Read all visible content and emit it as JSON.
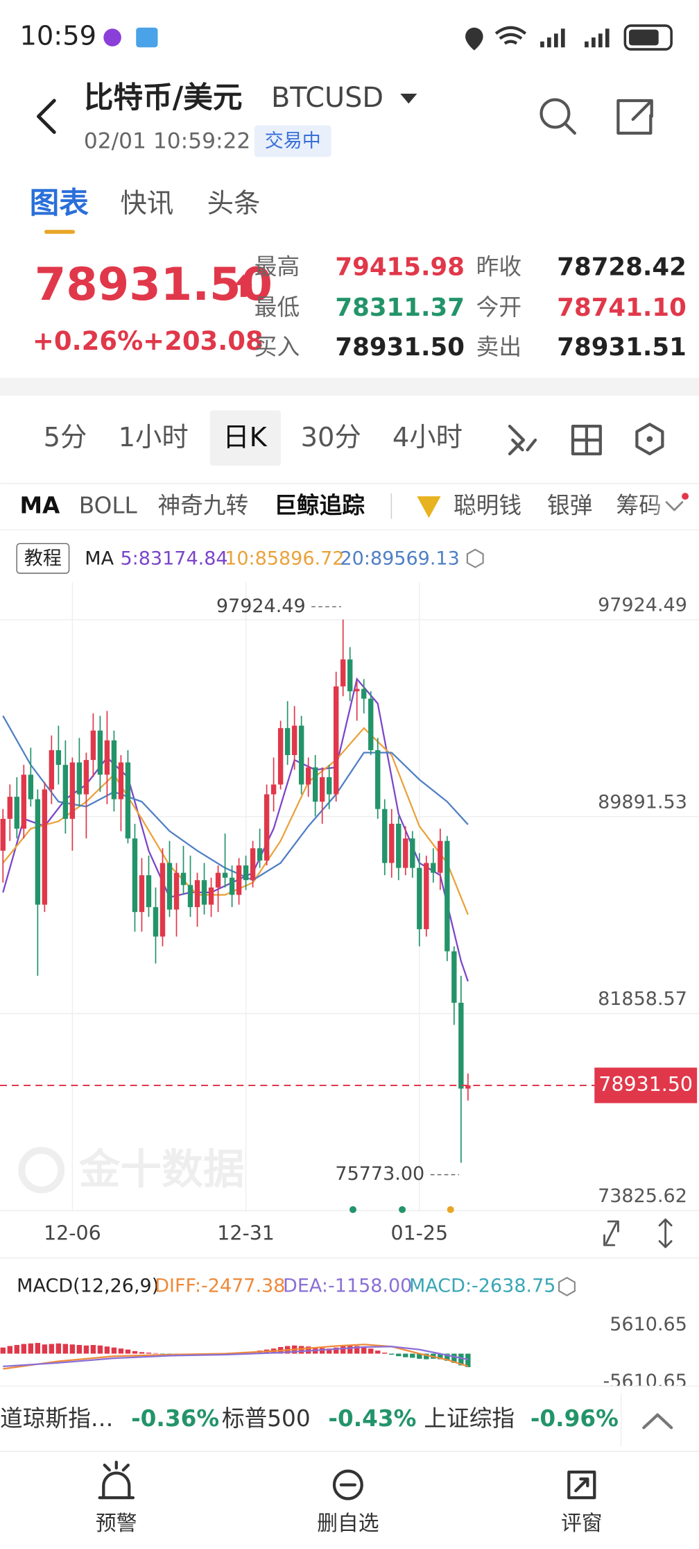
{
  "status_bar": {
    "time": "10:59"
  },
  "header": {
    "title": "比特币/美元",
    "symbol": "BTCUSD",
    "datetime": "02/01 10:59:22",
    "status": "交易中"
  },
  "tabs": [
    "图表",
    "快讯",
    "头条"
  ],
  "quote": {
    "price": "78931.50",
    "change_pct": "+0.26%",
    "change": "+203.08",
    "fields": [
      {
        "label": "最高",
        "value": "79415.98"
      },
      {
        "label": "昨收",
        "value": "78728.42"
      },
      {
        "label": "最低",
        "value": "78311.37"
      },
      {
        "label": "今开",
        "value": "78741.10"
      },
      {
        "label": "买入",
        "value": "78931.50"
      },
      {
        "label": "卖出",
        "value": "78931.51"
      }
    ]
  },
  "periods": [
    "5分",
    "1小时",
    "日K",
    "30分",
    "4小时"
  ],
  "indicators": [
    "MA",
    "BOLL",
    "神奇九转",
    "巨鲸追踪",
    "聪明钱",
    "银弹",
    "筹码"
  ],
  "kline": {
    "type": "candlestick",
    "tutorial": "教程",
    "ma_label": "MA",
    "up_color": "#e0384a",
    "down_color": "#23946a",
    "ylim": [
      73825.62,
      97924.49
    ],
    "yticks": [
      97924.49,
      89891.53,
      81858.57,
      73825.62
    ],
    "xticks": [
      {
        "value": 10,
        "label": "12-06"
      },
      {
        "value": 35,
        "label": "12-31"
      },
      {
        "value": 60,
        "label": "01-25"
      }
    ],
    "high": 97924.49,
    "low": {
      "value": 75773,
      "label": "75773.00"
    },
    "last": {
      "value": 78931.5,
      "label": "78931.50"
    },
    "watermark": "金十数据",
    "candles": [
      [
        88500,
        90200,
        87200,
        89800
      ],
      [
        89800,
        91200,
        88900,
        90700
      ],
      [
        90700,
        91500,
        89000,
        89400
      ],
      [
        89400,
        92000,
        89000,
        91600
      ],
      [
        91600,
        92700,
        90300,
        90600
      ],
      [
        90600,
        91000,
        83400,
        86300
      ],
      [
        86300,
        91300,
        86000,
        91000
      ],
      [
        91000,
        93200,
        90400,
        92600
      ],
      [
        92600,
        93600,
        91200,
        92000
      ],
      [
        92000,
        93000,
        89200,
        89800
      ],
      [
        89800,
        92300,
        88500,
        92100
      ],
      [
        92100,
        93100,
        90300,
        90800
      ],
      [
        90800,
        92500,
        89000,
        92200
      ],
      [
        92200,
        94100,
        91500,
        93400
      ],
      [
        93400,
        94000,
        90900,
        91600
      ],
      [
        91600,
        94200,
        90400,
        93000
      ],
      [
        93000,
        93400,
        90100,
        90600
      ],
      [
        90600,
        92400,
        89300,
        92100
      ],
      [
        92100,
        92600,
        88800,
        89000
      ],
      [
        89000,
        89600,
        85200,
        86000
      ],
      [
        86000,
        88200,
        85200,
        87500
      ],
      [
        87500,
        88300,
        85800,
        86200
      ],
      [
        86200,
        87000,
        83900,
        85000
      ],
      [
        85000,
        88600,
        84600,
        88000
      ],
      [
        88000,
        88900,
        85800,
        86100
      ],
      [
        86100,
        88000,
        85000,
        87600
      ],
      [
        87600,
        88700,
        86700,
        87100
      ],
      [
        87100,
        88300,
        85800,
        86200
      ],
      [
        86200,
        87600,
        85400,
        87300
      ],
      [
        87300,
        88000,
        85900,
        86300
      ],
      [
        86300,
        87400,
        85800,
        87000
      ],
      [
        87000,
        87900,
        86000,
        87600
      ],
      [
        87600,
        89200,
        87000,
        87400
      ],
      [
        87400,
        87900,
        86200,
        86700
      ],
      [
        86700,
        88200,
        86300,
        87900
      ],
      [
        87900,
        88300,
        86900,
        87300
      ],
      [
        87300,
        88900,
        87000,
        88600
      ],
      [
        88600,
        89400,
        87800,
        88100
      ],
      [
        88100,
        91200,
        87900,
        90800
      ],
      [
        90800,
        92300,
        90100,
        91200
      ],
      [
        91200,
        93800,
        91000,
        93500
      ],
      [
        93500,
        94600,
        92000,
        92400
      ],
      [
        92400,
        94400,
        91800,
        93600
      ],
      [
        93600,
        94000,
        90800,
        91200
      ],
      [
        91200,
        92300,
        90700,
        91900
      ],
      [
        91900,
        92400,
        89900,
        90500
      ],
      [
        90500,
        91900,
        89600,
        91500
      ],
      [
        91500,
        92000,
        90200,
        90800
      ],
      [
        90800,
        95800,
        90500,
        95200
      ],
      [
        95200,
        97924.49,
        94800,
        96300
      ],
      [
        96300,
        96800,
        94600,
        95000
      ],
      [
        95000,
        95400,
        93800,
        95100
      ],
      [
        95100,
        95500,
        94100,
        94700
      ],
      [
        94700,
        95000,
        92400,
        92600
      ],
      [
        92600,
        93100,
        89800,
        90200
      ],
      [
        90200,
        90600,
        87500,
        88000
      ],
      [
        88000,
        90200,
        87400,
        89600
      ],
      [
        89600,
        89900,
        87300,
        87800
      ],
      [
        87800,
        89500,
        87500,
        89000
      ],
      [
        89000,
        89300,
        87400,
        87800
      ],
      [
        87800,
        88400,
        84600,
        85300
      ],
      [
        85300,
        88300,
        85000,
        88000
      ],
      [
        88000,
        88600,
        87200,
        87600
      ],
      [
        87600,
        89400,
        86900,
        88900
      ],
      [
        88900,
        89100,
        84000,
        84400
      ],
      [
        84400,
        84600,
        81400,
        82300
      ],
      [
        82300,
        83400,
        75773,
        78800
      ],
      [
        78800,
        79415.98,
        78311.37,
        78931.5
      ]
    ],
    "ma": [
      {
        "name": "5:83174.84",
        "color": "#7b45c9",
        "x": [
          0,
          3,
          6,
          9,
          12,
          15,
          18,
          21,
          24,
          27,
          30,
          33,
          36,
          39,
          42,
          45,
          48,
          51,
          54,
          57,
          60,
          63,
          66,
          67
        ],
        "values": [
          86800,
          89800,
          89500,
          90600,
          91200,
          92300,
          91500,
          88500,
          86600,
          86800,
          86800,
          87200,
          87600,
          89400,
          92200,
          91800,
          91900,
          95500,
          94500,
          90000,
          88000,
          87500,
          84000,
          83174.84
        ]
      },
      {
        "name": "10:85896.72",
        "color": "#e9a23b",
        "x": [
          0,
          4,
          8,
          12,
          16,
          20,
          24,
          28,
          32,
          36,
          40,
          44,
          48,
          52,
          56,
          60,
          64,
          67
        ],
        "values": [
          88000,
          89400,
          89700,
          90500,
          91600,
          89800,
          87900,
          86700,
          86700,
          87200,
          88900,
          91300,
          92200,
          93500,
          92400,
          89500,
          88000,
          85896.72
        ]
      },
      {
        "name": "20:89569.13",
        "color": "#4f7fc4",
        "x": [
          0,
          4,
          8,
          12,
          16,
          20,
          24,
          28,
          32,
          36,
          40,
          44,
          48,
          52,
          56,
          60,
          64,
          67
        ],
        "values": [
          94000,
          92000,
          90500,
          90300,
          90900,
          90500,
          89300,
          88500,
          87800,
          87300,
          88000,
          89500,
          90800,
          92500,
          92500,
          91400,
          90500,
          89569.13
        ]
      }
    ]
  },
  "macd": {
    "title": "MACD(12,26,9)",
    "ylim": [
      -5610.65,
      5610.65
    ],
    "yticks": [
      5610.65,
      -5610.65
    ],
    "histogram": {
      "name": "MACD:-2638.75",
      "color": "#39a6b5",
      "values": [
        1200,
        1500,
        1700,
        1900,
        2000,
        2100,
        1800,
        1900,
        2000,
        1900,
        1800,
        1700,
        1600,
        1700,
        1600,
        1400,
        1200,
        1000,
        800,
        500,
        300,
        200,
        100,
        -100,
        -200,
        -300,
        -200,
        -100,
        -200,
        -300,
        -200,
        -100,
        0,
        100,
        200,
        300,
        400,
        600,
        800,
        1000,
        1300,
        1500,
        1600,
        1500,
        1400,
        1200,
        1100,
        1000,
        1200,
        1500,
        1600,
        1500,
        1300,
        1000,
        600,
        200,
        -200,
        -500,
        -700,
        -800,
        -1000,
        -1100,
        -1000,
        -1100,
        -1400,
        -1800,
        -2300,
        -2638.75
      ]
    },
    "series": [
      {
        "name": "DIFF:-2477.38",
        "color": "#ee8a3a",
        "x": [
          0,
          8,
          16,
          24,
          32,
          40,
          48,
          52,
          56,
          60,
          64,
          67
        ],
        "values": [
          -3000,
          -1500,
          -500,
          -200,
          0,
          600,
          1500,
          1800,
          1400,
          0,
          -1200,
          -2477.38
        ]
      },
      {
        "name": "DEA:-1158.00",
        "color": "#8a6fd6",
        "x": [
          0,
          8,
          16,
          24,
          32,
          40,
          48,
          52,
          56,
          60,
          64,
          67
        ],
        "values": [
          -2500,
          -1800,
          -900,
          -400,
          -200,
          200,
          900,
          1300,
          1400,
          800,
          -300,
          -1158
        ]
      }
    ]
  },
  "ticker": [
    {
      "name": "道琼斯指…",
      "change": "-0.36%"
    },
    {
      "name": "标普500",
      "change": "-0.43%"
    },
    {
      "name": "上证综指",
      "change": "-0.96%"
    }
  ],
  "nav": [
    "预警",
    "删自选",
    "评窗"
  ]
}
